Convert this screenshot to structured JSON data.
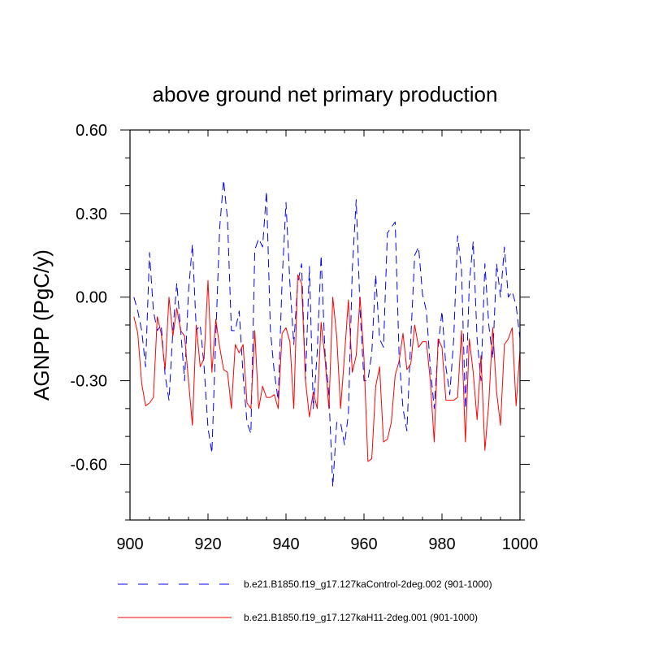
{
  "chart_data": {
    "type": "line",
    "title": "above ground net primary production",
    "xlabel": "",
    "ylabel": "AGNPP  (PgC/y)",
    "xlim": [
      900,
      1000
    ],
    "ylim": [
      -0.8,
      0.6
    ],
    "xticks": [
      900,
      920,
      940,
      960,
      980,
      1000
    ],
    "xtick_labels": [
      "900",
      "920",
      "940",
      "960",
      "980",
      "1000"
    ],
    "yticks": [
      0.6,
      0.3,
      0.0,
      -0.3,
      -0.6
    ],
    "ytick_labels": [
      "0.60",
      "0.30",
      "0.00",
      "-0.30",
      "-0.60"
    ],
    "x": [
      901,
      902,
      903,
      904,
      905,
      906,
      907,
      908,
      909,
      910,
      911,
      912,
      913,
      914,
      915,
      916,
      917,
      918,
      919,
      920,
      921,
      922,
      923,
      924,
      925,
      926,
      927,
      928,
      929,
      930,
      931,
      932,
      933,
      934,
      935,
      936,
      937,
      938,
      939,
      940,
      941,
      942,
      943,
      944,
      945,
      946,
      947,
      948,
      949,
      950,
      951,
      952,
      953,
      954,
      955,
      956,
      957,
      958,
      959,
      960,
      961,
      962,
      963,
      964,
      965,
      966,
      967,
      968,
      969,
      970,
      971,
      972,
      973,
      974,
      975,
      976,
      977,
      978,
      979,
      980,
      981,
      982,
      983,
      984,
      985,
      986,
      987,
      988,
      989,
      990,
      991,
      992,
      993,
      994,
      995,
      996,
      997,
      998,
      999,
      1000
    ],
    "series": [
      {
        "name": "b.e21.B1850.f19_g17.127kaControl-2deg.002 (901-1000)",
        "color": "#0000ff",
        "style": "dashed",
        "values": [
          0.0,
          -0.05,
          -0.12,
          -0.25,
          0.16,
          -0.05,
          -0.12,
          -0.1,
          -0.28,
          -0.37,
          -0.12,
          0.05,
          -0.12,
          -0.3,
          0.02,
          0.19,
          -0.12,
          -0.1,
          -0.25,
          -0.47,
          -0.56,
          -0.14,
          0.25,
          0.42,
          0.28,
          -0.12,
          -0.12,
          -0.05,
          -0.28,
          -0.45,
          -0.49,
          0.17,
          0.21,
          0.18,
          0.38,
          -0.12,
          -0.27,
          -0.37,
          0.06,
          0.34,
          0.05,
          -0.17,
          0.05,
          0.12,
          -0.3,
          0.11,
          -0.4,
          -0.2,
          0.15,
          -0.2,
          -0.35,
          -0.68,
          -0.45,
          -0.45,
          -0.53,
          -0.42,
          0.1,
          0.35,
          -0.05,
          -0.3,
          -0.3,
          -0.2,
          0.08,
          -0.15,
          -0.18,
          0.23,
          0.25,
          0.27,
          -0.21,
          -0.4,
          -0.48,
          -0.15,
          0.15,
          0.18,
          0.01,
          -0.05,
          -0.25,
          -0.4,
          -0.18,
          -0.05,
          -0.25,
          -0.35,
          -0.15,
          0.22,
          0.1,
          -0.4,
          0.05,
          0.2,
          -0.15,
          -0.3,
          0.12,
          -0.1,
          -0.22,
          0.12,
          0.0,
          0.18,
          0.0,
          0.02,
          -0.03,
          -0.15
        ]
      },
      {
        "name": "b.e21.B1850.f19_g17.127kaH11-2deg.001 (901-1000)",
        "color": "#ff0000",
        "style": "solid",
        "values": [
          -0.07,
          -0.13,
          -0.31,
          -0.39,
          -0.38,
          -0.36,
          -0.07,
          -0.13,
          -0.26,
          0.0,
          -0.14,
          -0.04,
          -0.12,
          -0.14,
          -0.3,
          -0.46,
          -0.1,
          -0.25,
          -0.22,
          0.06,
          -0.27,
          -0.08,
          -0.18,
          -0.26,
          -0.27,
          -0.4,
          -0.17,
          -0.2,
          -0.17,
          -0.38,
          -0.4,
          -0.12,
          -0.4,
          -0.32,
          -0.36,
          -0.36,
          -0.35,
          -0.4,
          -0.13,
          -0.11,
          -0.16,
          -0.4,
          0.08,
          0.05,
          -0.3,
          -0.43,
          -0.34,
          -0.4,
          -0.09,
          -0.22,
          -0.4,
          0.0,
          -0.14,
          -0.4,
          -0.21,
          -0.01,
          -0.27,
          -0.21,
          0.0,
          -0.22,
          -0.59,
          -0.58,
          -0.32,
          -0.25,
          -0.52,
          -0.51,
          -0.45,
          -0.28,
          -0.23,
          -0.13,
          -0.26,
          -0.24,
          -0.1,
          -0.18,
          -0.16,
          -0.16,
          -0.3,
          -0.52,
          -0.15,
          -0.18,
          -0.37,
          -0.37,
          -0.37,
          -0.36,
          -0.12,
          -0.52,
          -0.15,
          -0.27,
          -0.44,
          -0.21,
          -0.55,
          -0.38,
          -0.11,
          -0.34,
          -0.46,
          -0.17,
          -0.15,
          -0.11,
          -0.39,
          -0.19
        ]
      }
    ]
  }
}
